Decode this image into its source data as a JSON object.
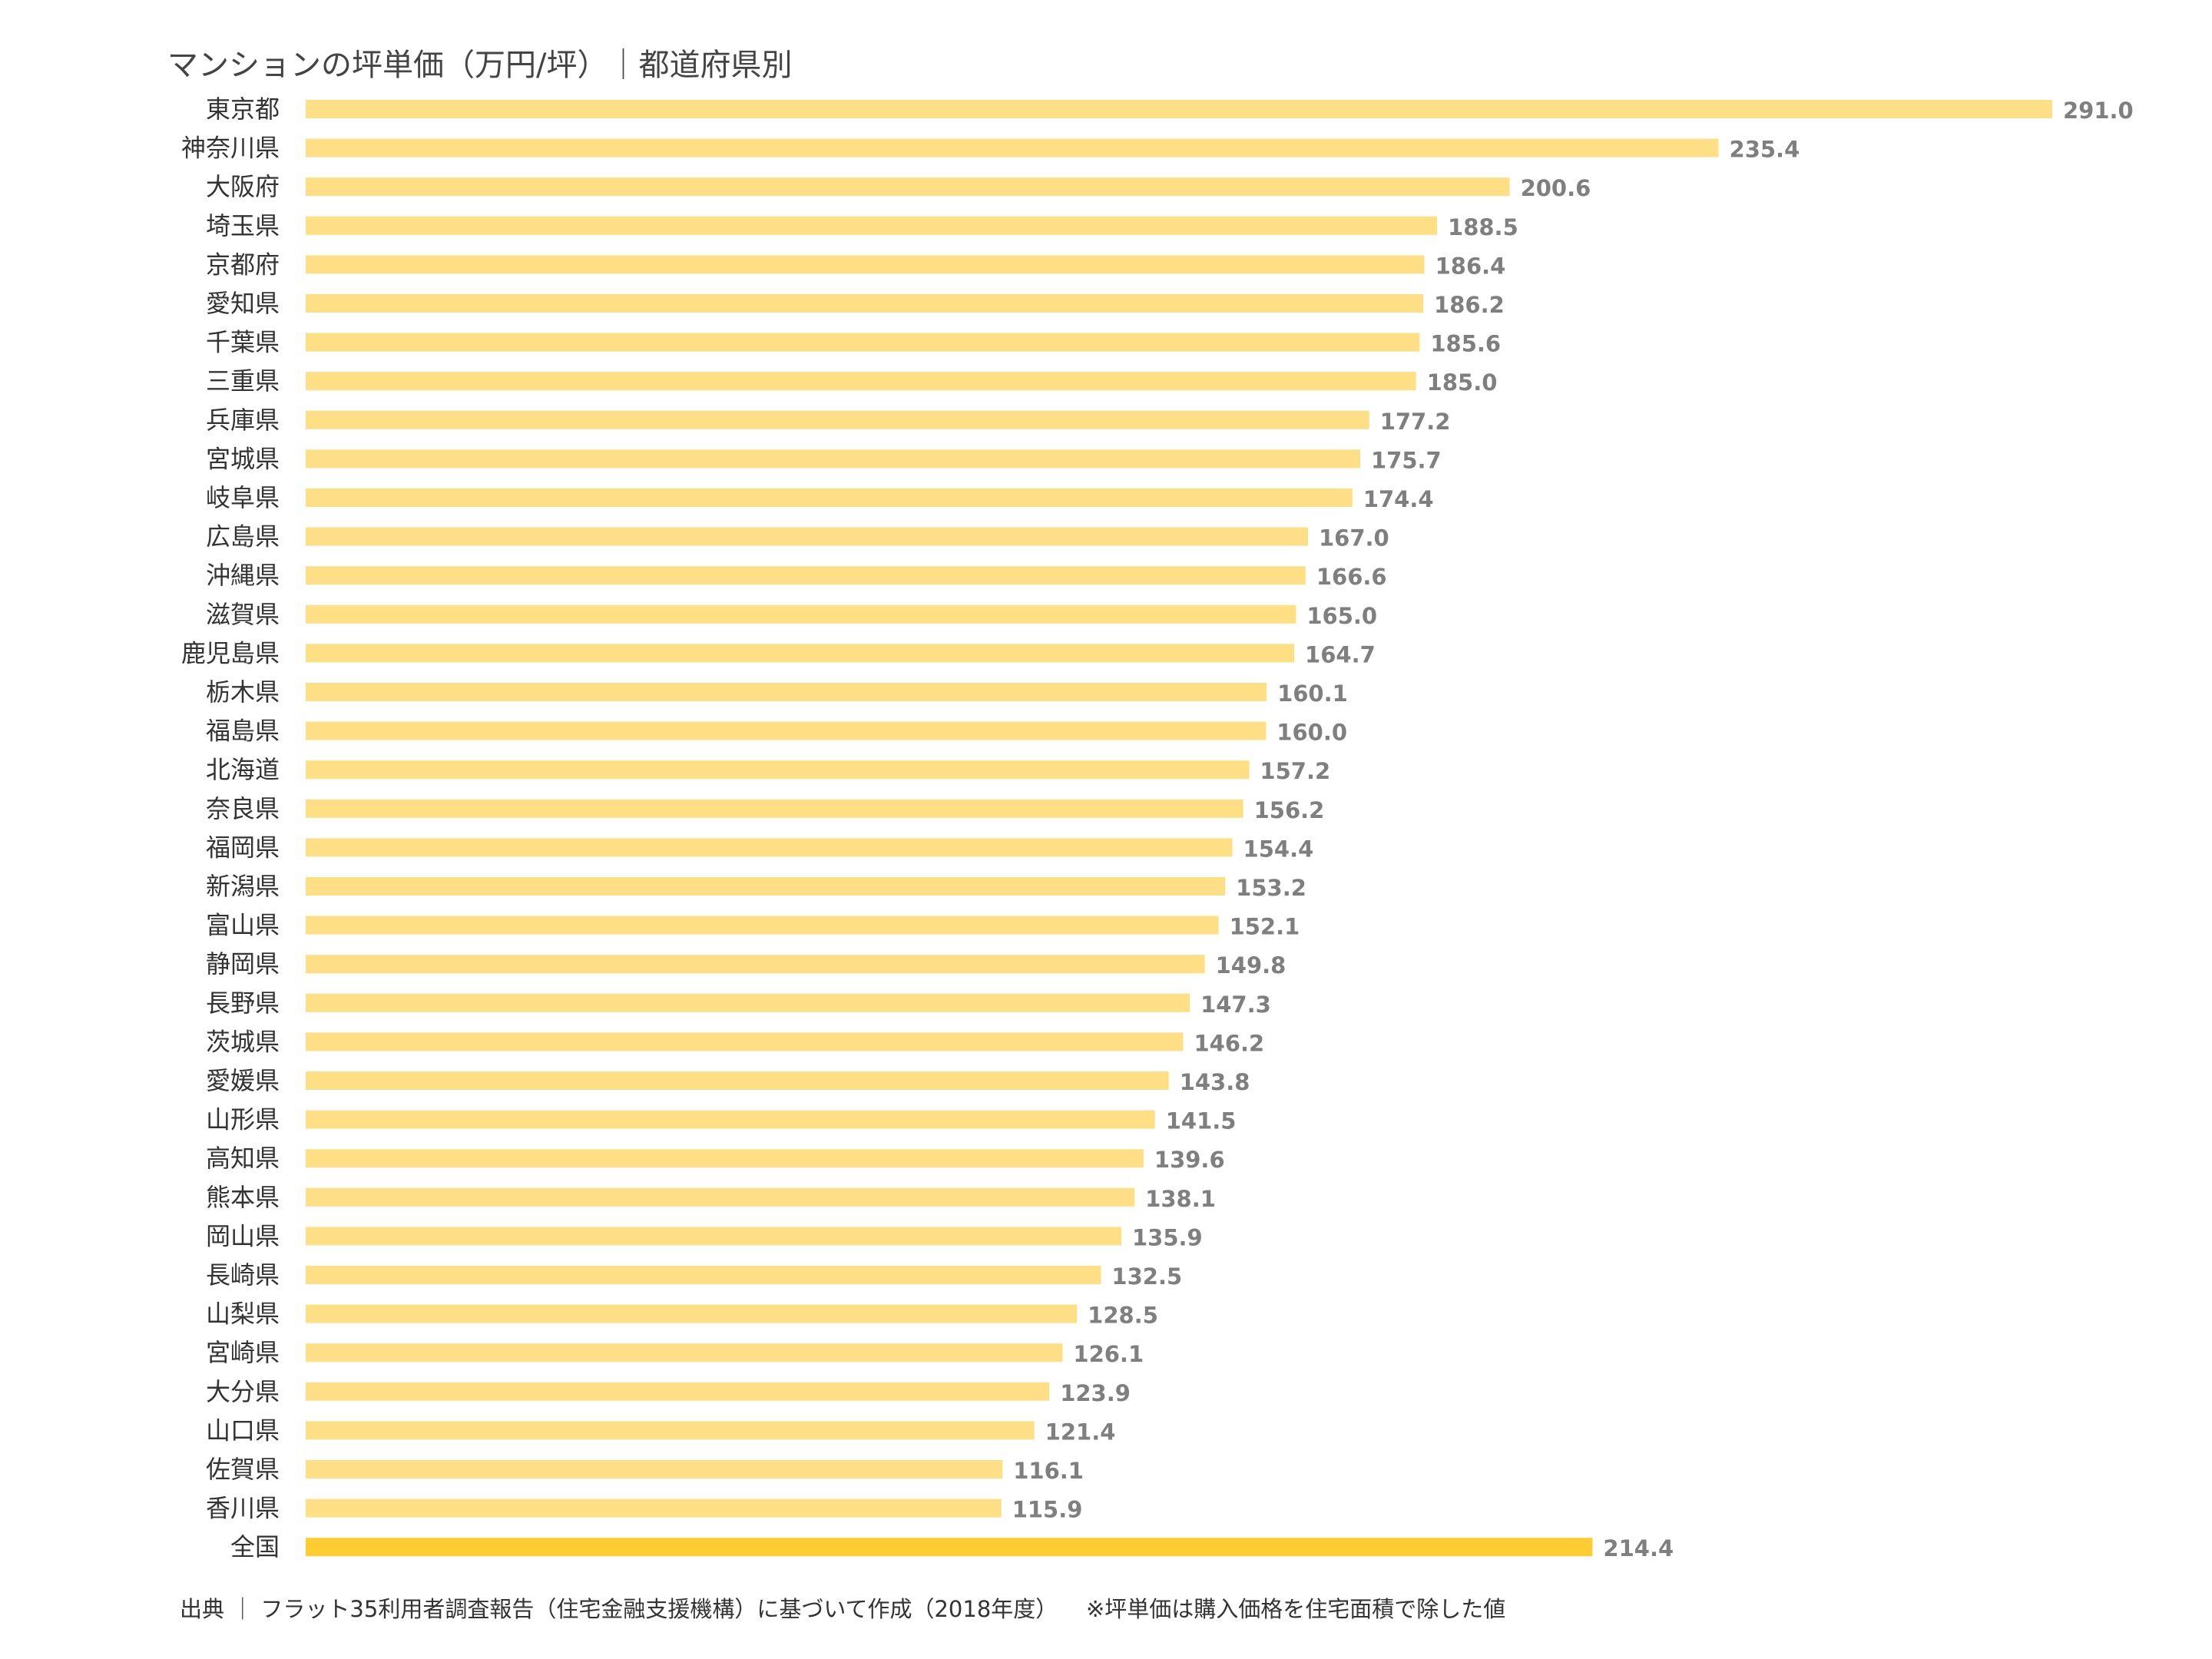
{
  "chart_data": {
    "type": "bar",
    "orientation": "horizontal",
    "title": "マンションの坪単価（万円/坪）｜都道府県別",
    "xlabel": "",
    "ylabel": "",
    "xlim": [
      0,
      291.0
    ],
    "grid": false,
    "categories": [
      "東京都",
      "神奈川県",
      "大阪府",
      "埼玉県",
      "京都府",
      "愛知県",
      "千葉県",
      "三重県",
      "兵庫県",
      "宮城県",
      "岐阜県",
      "広島県",
      "沖縄県",
      "滋賀県",
      "鹿児島県",
      "栃木県",
      "福島県",
      "北海道",
      "奈良県",
      "福岡県",
      "新潟県",
      "富山県",
      "静岡県",
      "長野県",
      "茨城県",
      "愛媛県",
      "山形県",
      "高知県",
      "熊本県",
      "岡山県",
      "長崎県",
      "山梨県",
      "宮崎県",
      "大分県",
      "山口県",
      "佐賀県",
      "香川県",
      "全国"
    ],
    "values": [
      291.0,
      235.4,
      200.6,
      188.5,
      186.4,
      186.2,
      185.6,
      185.0,
      177.2,
      175.7,
      174.4,
      167.0,
      166.6,
      165.0,
      164.7,
      160.1,
      160.0,
      157.2,
      156.2,
      154.4,
      153.2,
      152.1,
      149.8,
      147.3,
      146.2,
      143.8,
      141.5,
      139.6,
      138.1,
      135.9,
      132.5,
      128.5,
      126.1,
      123.9,
      121.4,
      116.1,
      115.9,
      214.4
    ],
    "value_labels": [
      "291.0",
      "235.4",
      "200.6",
      "188.5",
      "186.4",
      "186.2",
      "185.6",
      "185.0",
      "177.2",
      "175.7",
      "174.4",
      "167.0",
      "166.6",
      "165.0",
      "164.7",
      "160.1",
      "160.0",
      "157.2",
      "156.2",
      "154.4",
      "153.2",
      "152.1",
      "149.8",
      "147.3",
      "146.2",
      "143.8",
      "141.5",
      "139.6",
      "138.1",
      "135.9",
      "132.5",
      "128.5",
      "126.1",
      "123.9",
      "121.4",
      "116.1",
      "115.9",
      "214.4"
    ],
    "colors": {
      "bar": "#fedf86",
      "highlight_bar": "#ffcc33",
      "value_text": "#7f7f7f",
      "category_text": "#333333"
    },
    "highlight_category": "全国"
  },
  "footer": {
    "source": "出典 ｜ フラット35利用者調査報告（住宅金融支援機構）に基づいて作成（2018年度）",
    "note": "※坪単価は購入価格を住宅面積で除した値"
  }
}
